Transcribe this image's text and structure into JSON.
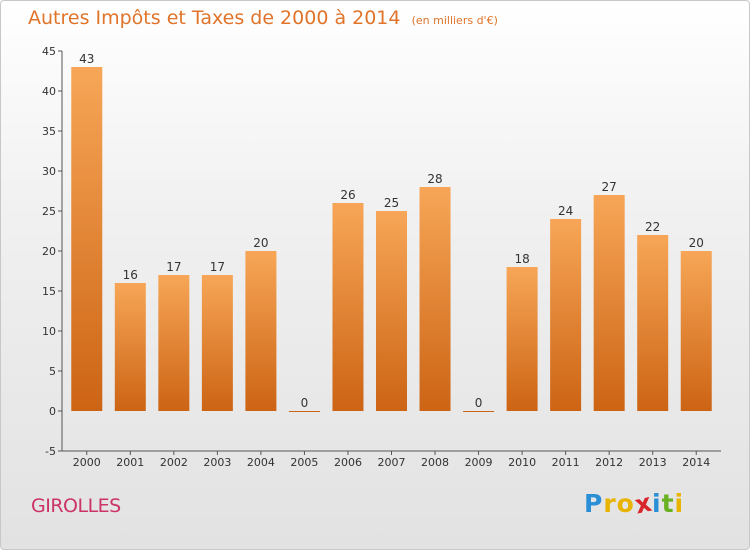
{
  "title": "Autres Impôts et Taxes de 2000 à 2014",
  "unit": "(en milliers d'€)",
  "place": "GIROLLES",
  "logo": {
    "letters": [
      "P",
      "r",
      "o",
      "x",
      "i",
      "t",
      "i"
    ],
    "colors": [
      "#2a8fd6",
      "#e8b400",
      "#e8b400",
      "#d8262b",
      "#2a8fd6",
      "#6ab023",
      "#e8b400"
    ]
  },
  "colors": {
    "bar_top": "#f7a657",
    "bar_bottom": "#cc6414",
    "title": "#e0742a",
    "place": "#cc3366"
  },
  "chart_data": {
    "type": "bar",
    "title": "Autres Impôts et Taxes de 2000 à 2014",
    "subtitle": "(en milliers d'€)",
    "categories": [
      "2000",
      "2001",
      "2002",
      "2003",
      "2004",
      "2005",
      "2006",
      "2007",
      "2008",
      "2009",
      "2010",
      "2011",
      "2012",
      "2013",
      "2014"
    ],
    "values": [
      43,
      16,
      17,
      17,
      20,
      0,
      26,
      25,
      28,
      0,
      18,
      24,
      27,
      22,
      20
    ],
    "ylim": [
      -5,
      45
    ],
    "yticks": [
      -5,
      0,
      5,
      10,
      15,
      20,
      25,
      30,
      35,
      40,
      45
    ],
    "grid": false,
    "legend": "none"
  }
}
